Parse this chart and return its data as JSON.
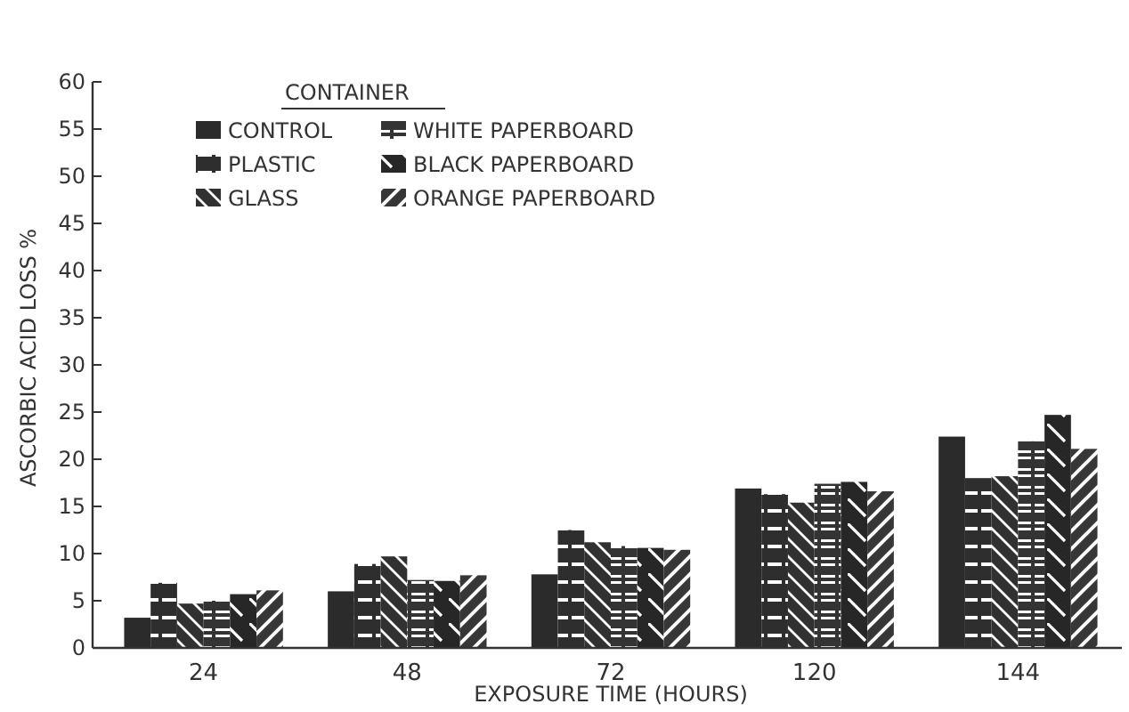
{
  "chart_data": {
    "type": "bar",
    "xlabel": "EXPOSURE TIME (HOURS)",
    "ylabel": "ASCORBIC ACID LOSS %",
    "legend_title": "CONTAINER",
    "legend": "top left",
    "categories": [
      "24",
      "48",
      "72",
      "120",
      "144"
    ],
    "series": [
      {
        "name": "CONTROL",
        "color": "#2b2b2b",
        "values": [
          3.2,
          6.0,
          7.8,
          16.9,
          22.4
        ]
      },
      {
        "name": "PLASTIC",
        "color": "#2e2e2e",
        "values": [
          6.9,
          8.9,
          12.5,
          16.3,
          18.0
        ]
      },
      {
        "name": "GLASS",
        "color": "#313131",
        "values": [
          4.7,
          9.7,
          11.2,
          15.4,
          18.2
        ]
      },
      {
        "name": "WHITE PAPERBOARD",
        "color": "#343434",
        "values": [
          5.0,
          7.2,
          10.8,
          17.4,
          21.9
        ]
      },
      {
        "name": "BLACK PAPERBOARD",
        "color": "#272727",
        "values": [
          5.7,
          7.1,
          10.6,
          17.6,
          24.7
        ]
      },
      {
        "name": "ORANGE PAPERBOARD",
        "color": "#373737",
        "values": [
          6.1,
          7.7,
          10.4,
          16.6,
          21.1
        ]
      }
    ],
    "ylim": [
      0,
      60
    ],
    "yticks": [
      0,
      5,
      10,
      15,
      20,
      25,
      30,
      35,
      40,
      45,
      50,
      55,
      60
    ],
    "grid": false
  }
}
